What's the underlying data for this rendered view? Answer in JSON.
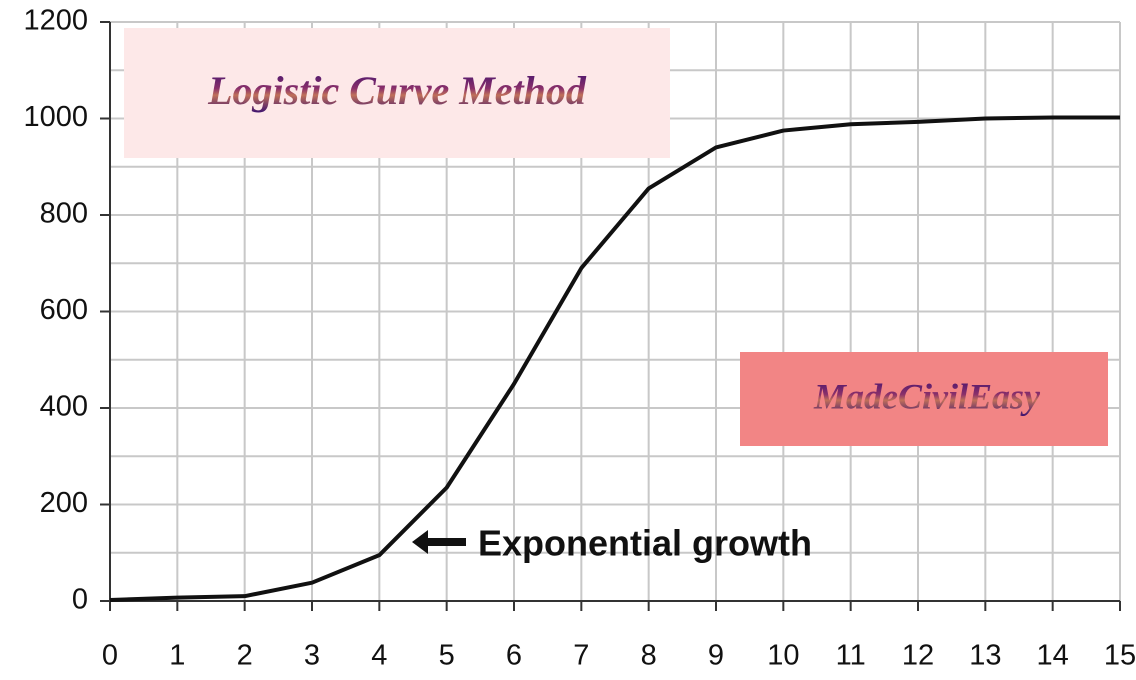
{
  "chart_data": {
    "type": "line",
    "x": [
      0,
      1,
      2,
      3,
      4,
      5,
      6,
      7,
      8,
      9,
      10,
      11,
      12,
      13,
      14,
      15
    ],
    "values": [
      2,
      7,
      10,
      38,
      95,
      235,
      450,
      690,
      855,
      940,
      975,
      988,
      993,
      1000,
      1002,
      1002
    ],
    "color": "#111111",
    "xlim": [
      0,
      15
    ],
    "xticks": [
      0,
      1,
      2,
      3,
      4,
      5,
      6,
      7,
      8,
      9,
      10,
      11,
      12,
      13,
      14,
      15
    ],
    "ylim": [
      0,
      1200
    ],
    "yticks": [
      0,
      200,
      400,
      600,
      800,
      1000,
      1200
    ],
    "y_minor_grid": [
      100,
      300,
      500,
      700,
      900,
      1100
    ],
    "grid": true,
    "annotations": [
      "Logistic Curve Method",
      "MadeCivilEasy",
      "Exponential growth"
    ]
  }
}
